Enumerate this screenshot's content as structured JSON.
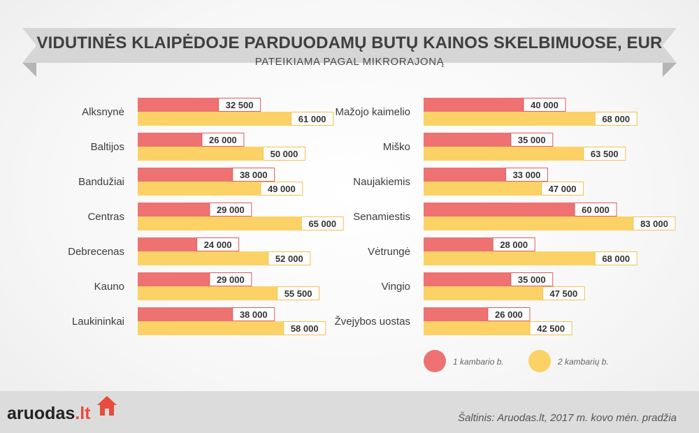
{
  "title": "VIDUTINĖS KLAIPĖDOJE PARDUODAMŲ BUTŲ KAINOS SKELBIMUOSE, EUR",
  "subtitle": "PATEIKIAMA PAGAL MIKRORAJONĄ",
  "colors": {
    "one_room": "#ee7271",
    "two_room": "#fcd266",
    "one_room_border": "#e05a5a",
    "two_room_border": "#f2c14e",
    "banner": "#d6d6d6",
    "banner_fold": "#b5b5b5"
  },
  "legend": {
    "one_room": "1 kambario b.",
    "two_room": "2 kambarių b."
  },
  "chart_data": {
    "type": "bar",
    "orientation": "horizontal",
    "title": "VIDUTINĖS KLAIPĖDOJE PARDUODAMŲ BUTŲ KAINOS SKELBIMUOSE, EUR",
    "subtitle": "PATEIKIAMA PAGAL MIKRORAJONĄ",
    "xlabel": "",
    "ylabel": "",
    "xlim": [
      0,
      85000
    ],
    "grid": false,
    "legend_position": "bottom-right",
    "panels": [
      {
        "categories": [
          "Alksnynė",
          "Baltijos",
          "Bandužiai",
          "Centras",
          "Debrecenas",
          "Kauno",
          "Laukininkai"
        ],
        "series": [
          {
            "name": "1 kambario b.",
            "values": [
              32500,
              26000,
              38000,
              29000,
              24000,
              29000,
              38000
            ],
            "labels": [
              "32 500",
              "26 000",
              "38 000",
              "29 000",
              "24 000",
              "29 000",
              "38 000"
            ]
          },
          {
            "name": "2 kambarių b.",
            "values": [
              61000,
              50000,
              49000,
              65000,
              52000,
              55500,
              58000
            ],
            "labels": [
              "61 000",
              "50 000",
              "49 000",
              "65 000",
              "52 000",
              "55 500",
              "58 000"
            ]
          }
        ]
      },
      {
        "categories": [
          "Mažojo kaimelio",
          "Miško",
          "Naujakiemis",
          "Senamiestis",
          "Vėtrungė",
          "Vingio",
          "Žvejybos uostas"
        ],
        "series": [
          {
            "name": "1 kambario b.",
            "values": [
              40000,
              35000,
              33000,
              60000,
              28000,
              35000,
              26000
            ],
            "labels": [
              "40 000",
              "35 000",
              "33 000",
              "60 000",
              "28 000",
              "35 000",
              "26 000"
            ]
          },
          {
            "name": "2 kambarių b.",
            "values": [
              68000,
              63500,
              47000,
              83000,
              68000,
              47500,
              42500
            ],
            "labels": [
              "68 000",
              "63 500",
              "47 000",
              "83 000",
              "68 000",
              "47 500",
              "42 500"
            ]
          }
        ]
      }
    ]
  },
  "footer": {
    "logo_main": "aruodas",
    "logo_suffix": ".lt",
    "source": "Šaltinis: Aruodas.lt, 2017 m. kovo mėn. pradžia"
  }
}
